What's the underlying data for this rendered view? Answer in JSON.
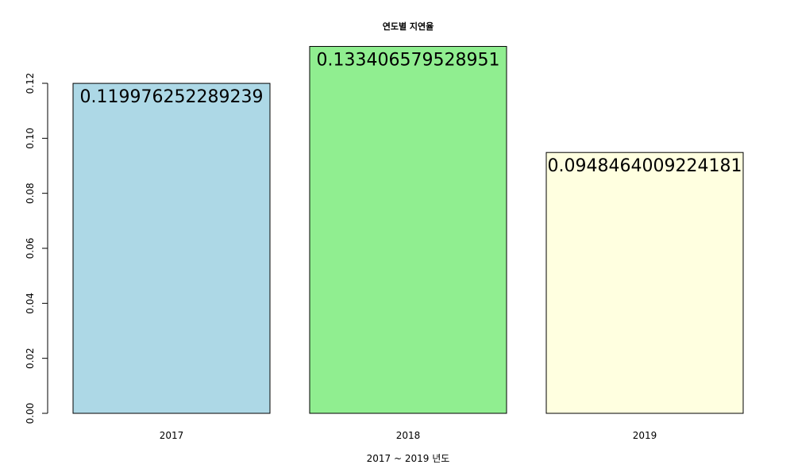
{
  "chart_data": {
    "type": "bar",
    "title": "연도별 지연율",
    "xlabel": "2017 ~ 2019 년도",
    "ylabel": "",
    "categories": [
      "2017",
      "2018",
      "2019"
    ],
    "values": [
      0.119976252289239,
      0.133406579528951,
      0.0948464009224181
    ],
    "data_labels": [
      "0.119976252289239",
      "0.133406579528951",
      "0.0948464009224181"
    ],
    "colors": [
      "#add8e6",
      "#90ee90",
      "#ffffe0"
    ],
    "ylim": [
      0,
      0.12
    ],
    "yticks": [
      "0.00",
      "0.02",
      "0.04",
      "0.06",
      "0.08",
      "0.10",
      "0.12"
    ],
    "grid": false,
    "legend": "none"
  }
}
